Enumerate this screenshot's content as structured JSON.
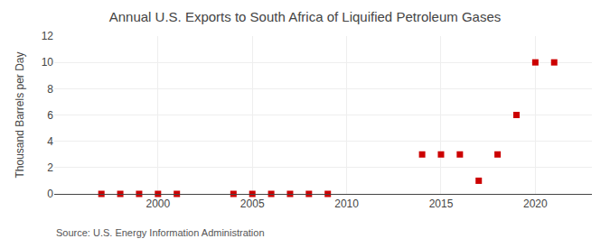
{
  "chart_data": {
    "type": "scatter",
    "title": "Annual U.S. Exports to South Africa of Liquified Petroleum Gases",
    "ylabel": "Thousand Barrels per Day",
    "annotations": [
      "Source: U.S. Energy Information Administration"
    ],
    "x": [
      1997,
      1998,
      1999,
      2000,
      2001,
      2004,
      2005,
      2006,
      2007,
      2008,
      2009,
      2014,
      2015,
      2016,
      2017,
      2018,
      2019,
      2020,
      2021
    ],
    "values": [
      0,
      0,
      0,
      0,
      0,
      0,
      0,
      0,
      0,
      0,
      0,
      3,
      3,
      3,
      1,
      3,
      6,
      10,
      10
    ],
    "color": "#cc0000",
    "marker": "square",
    "xlim": [
      1994.5,
      2023
    ],
    "xticks": [
      2000,
      2005,
      2010,
      2015,
      2020
    ],
    "ylim": [
      0,
      12
    ],
    "yticks": [
      0,
      2,
      4,
      6,
      8,
      10,
      12
    ],
    "grid": true
  }
}
